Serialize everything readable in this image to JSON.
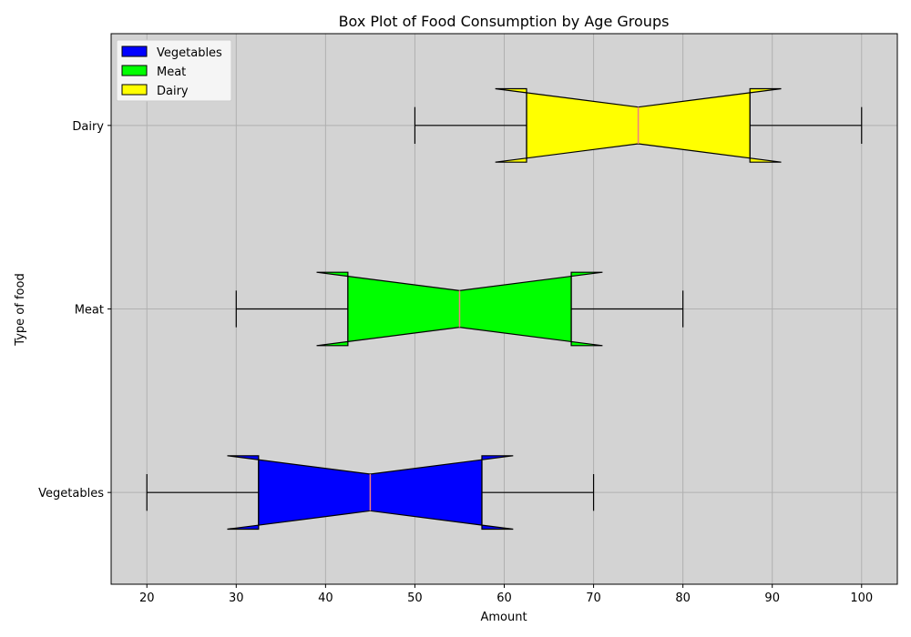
{
  "chart_data": {
    "type": "box",
    "orientation": "horizontal",
    "notched": true,
    "title": "Box Plot of Food Consumption by Age Groups",
    "xlabel": "Amount",
    "ylabel": "Type of food",
    "xlim": [
      16,
      104
    ],
    "xticks": [
      20,
      30,
      40,
      50,
      60,
      70,
      80,
      90,
      100
    ],
    "grid": true,
    "legend_position": "top-left",
    "series": [
      {
        "name": "Vegetables",
        "color": "#0000ff",
        "min": 20,
        "q1": 32.5,
        "median": 45,
        "q3": 57.5,
        "max": 70,
        "notch_low": 32.5,
        "notch_high": 57.5
      },
      {
        "name": "Meat",
        "color": "#00ff00",
        "min": 30,
        "q1": 42.5,
        "median": 55,
        "q3": 67.5,
        "max": 80,
        "notch_low": 42.5,
        "notch_high": 67.5
      },
      {
        "name": "Dairy",
        "color": "#ffff00",
        "min": 50,
        "q1": 62.5,
        "median": 75,
        "q3": 87.5,
        "max": 100,
        "notch_low": 62.5,
        "notch_high": 87.5
      }
    ],
    "colors": {
      "plot_background": "#d3d3d3",
      "median_line": "#f08080",
      "grid": "#b0b0b0"
    }
  }
}
